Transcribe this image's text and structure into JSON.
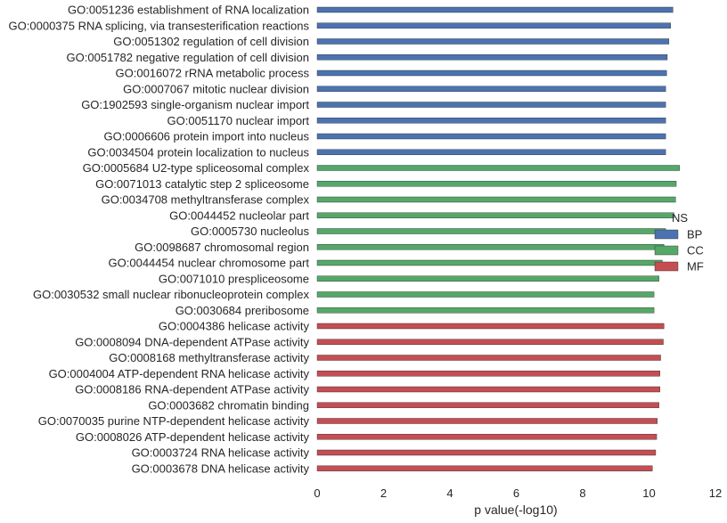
{
  "chart_data": {
    "type": "bar",
    "orientation": "horizontal",
    "xlabel": "p value(-log10)",
    "xlim": [
      0,
      12
    ],
    "xticks": [
      0,
      2,
      4,
      6,
      8,
      10,
      12
    ],
    "grid": false,
    "legend": {
      "title": "NS",
      "placement": "right",
      "entries": [
        {
          "name": "BP",
          "color": "#4c72b0"
        },
        {
          "name": "CC",
          "color": "#55a868"
        },
        {
          "name": "MF",
          "color": "#c44e52"
        }
      ]
    },
    "bars": [
      {
        "label": "GO:0051236 establishment of RNA localization",
        "value": 10.72,
        "group": "BP"
      },
      {
        "label": "GO:0000375 RNA splicing, via transesterification reactions",
        "value": 10.65,
        "group": "BP"
      },
      {
        "label": "GO:0051302 regulation of cell division",
        "value": 10.6,
        "group": "BP"
      },
      {
        "label": "GO:0051782 negative regulation of cell division",
        "value": 10.55,
        "group": "BP"
      },
      {
        "label": "GO:0016072 rRNA metabolic process",
        "value": 10.53,
        "group": "BP"
      },
      {
        "label": "GO:0007067 mitotic nuclear division",
        "value": 10.5,
        "group": "BP"
      },
      {
        "label": "GO:1902593 single-organism nuclear import",
        "value": 10.5,
        "group": "BP"
      },
      {
        "label": "GO:0051170 nuclear import",
        "value": 10.5,
        "group": "BP"
      },
      {
        "label": "GO:0006606 protein import into nucleus",
        "value": 10.5,
        "group": "BP"
      },
      {
        "label": "GO:0034504 protein localization to nucleus",
        "value": 10.5,
        "group": "BP"
      },
      {
        "label": "GO:0005684 U2-type spliceosomal complex",
        "value": 10.92,
        "group": "CC"
      },
      {
        "label": "GO:0071013 catalytic step 2 spliceosome",
        "value": 10.82,
        "group": "CC"
      },
      {
        "label": "GO:0034708 methyltransferase complex",
        "value": 10.8,
        "group": "CC"
      },
      {
        "label": "GO:0044452 nucleolar part",
        "value": 10.75,
        "group": "CC"
      },
      {
        "label": "GO:0005730 nucleolus",
        "value": 10.5,
        "group": "CC"
      },
      {
        "label": "GO:0098687 chromosomal region",
        "value": 10.45,
        "group": "CC"
      },
      {
        "label": "GO:0044454 nuclear chromosome part",
        "value": 10.4,
        "group": "CC"
      },
      {
        "label": "GO:0071010 prespliceosome",
        "value": 10.3,
        "group": "CC"
      },
      {
        "label": "GO:0030532 small nuclear ribonucleoprotein complex",
        "value": 10.15,
        "group": "CC"
      },
      {
        "label": "GO:0030684 preribosome",
        "value": 10.15,
        "group": "CC"
      },
      {
        "label": "GO:0004386 helicase activity",
        "value": 10.45,
        "group": "MF"
      },
      {
        "label": "GO:0008094 DNA-dependent ATPase activity",
        "value": 10.43,
        "group": "MF"
      },
      {
        "label": "GO:0008168 methyltransferase activity",
        "value": 10.35,
        "group": "MF"
      },
      {
        "label": "GO:0004004 ATP-dependent RNA helicase activity",
        "value": 10.33,
        "group": "MF"
      },
      {
        "label": "GO:0008186 RNA-dependent ATPase activity",
        "value": 10.33,
        "group": "MF"
      },
      {
        "label": "GO:0003682 chromatin binding",
        "value": 10.3,
        "group": "MF"
      },
      {
        "label": "GO:0070035 purine NTP-dependent helicase activity",
        "value": 10.25,
        "group": "MF"
      },
      {
        "label": "GO:0008026 ATP-dependent helicase activity",
        "value": 10.23,
        "group": "MF"
      },
      {
        "label": "GO:0003724 RNA helicase activity",
        "value": 10.2,
        "group": "MF"
      },
      {
        "label": "GO:0003678 DNA helicase activity",
        "value": 10.1,
        "group": "MF"
      }
    ]
  }
}
